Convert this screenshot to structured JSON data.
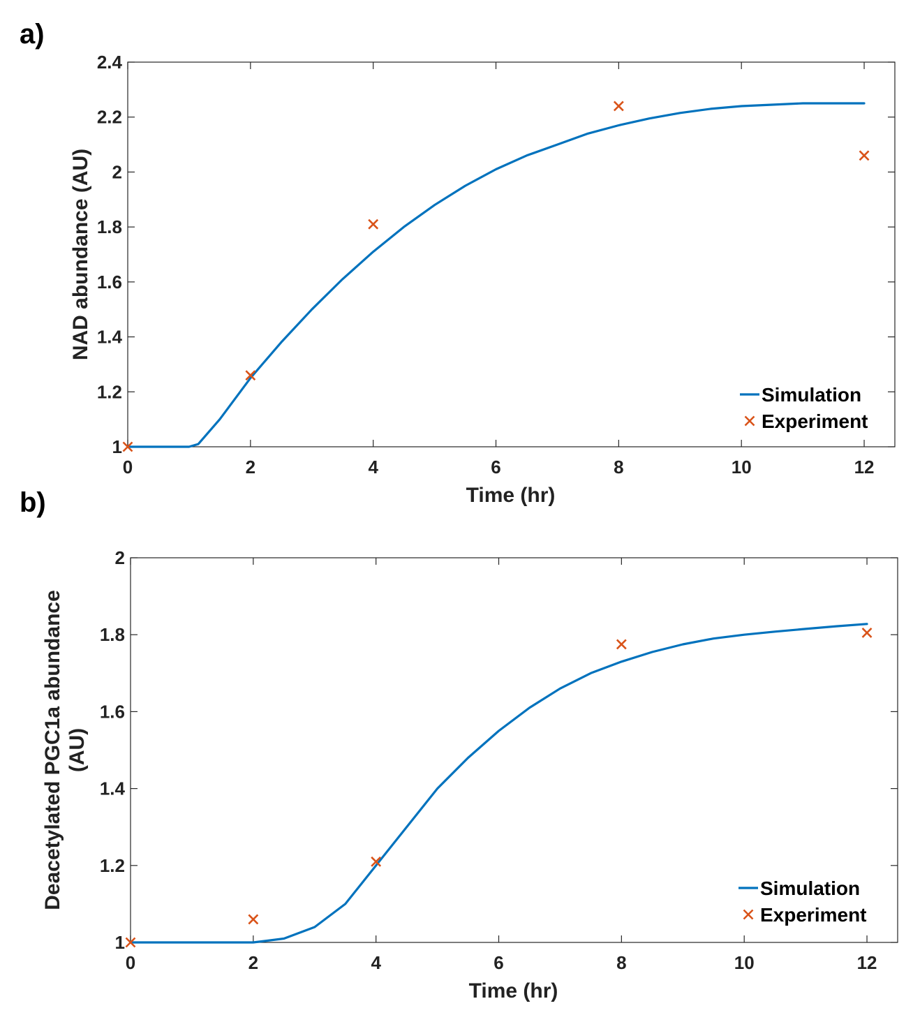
{
  "chart_data": [
    {
      "panel_label": "a)",
      "type": "line",
      "xlabel": "Time (hr)",
      "ylabel": [
        "NAD abundance (AU)"
      ],
      "xlim": [
        0,
        12.5
      ],
      "ylim": [
        1,
        2.4
      ],
      "xticks": [
        0,
        2,
        4,
        6,
        8,
        10,
        12
      ],
      "yticks": [
        1,
        1.2,
        1.4,
        1.6,
        1.8,
        2,
        2.2,
        2.4
      ],
      "xtick_labels": [
        "0",
        "2",
        "4",
        "6",
        "8",
        "10",
        "12"
      ],
      "ytick_labels": [
        "1",
        "1.2",
        "1.4",
        "1.6",
        "1.8",
        "2",
        "2.2",
        "2.4"
      ],
      "grid": false,
      "legend": "bottom-right",
      "series": [
        {
          "name": "Simulation",
          "kind": "line",
          "color": "#0072BD",
          "x": [
            0,
            0.5,
            1.0,
            1.15,
            1.5,
            2.0,
            2.5,
            3.0,
            3.5,
            4.0,
            4.5,
            5.0,
            5.5,
            6.0,
            6.5,
            7.0,
            7.5,
            8.0,
            8.5,
            9.0,
            9.5,
            10.0,
            10.5,
            11.0,
            11.5,
            12.0
          ],
          "y": [
            1.0,
            1.0,
            1.0,
            1.01,
            1.1,
            1.25,
            1.38,
            1.5,
            1.61,
            1.71,
            1.8,
            1.88,
            1.95,
            2.01,
            2.06,
            2.1,
            2.14,
            2.17,
            2.195,
            2.215,
            2.23,
            2.24,
            2.245,
            2.25,
            2.25,
            2.25
          ]
        },
        {
          "name": "Experiment",
          "kind": "scatter",
          "marker": "x",
          "color": "#D95319",
          "x": [
            0,
            2,
            4,
            8,
            12
          ],
          "y": [
            1.0,
            1.26,
            1.81,
            2.24,
            2.06
          ]
        }
      ]
    },
    {
      "panel_label": "b)",
      "type": "line",
      "xlabel": "Time (hr)",
      "ylabel": [
        "Deacetylated PGC1a abundance",
        "(AU)"
      ],
      "xlim": [
        0,
        12.5
      ],
      "ylim": [
        1,
        2
      ],
      "xticks": [
        0,
        2,
        4,
        6,
        8,
        10,
        12
      ],
      "yticks": [
        1,
        1.2,
        1.4,
        1.6,
        1.8,
        2
      ],
      "xtick_labels": [
        "0",
        "2",
        "4",
        "6",
        "8",
        "10",
        "12"
      ],
      "ytick_labels": [
        "1",
        "1.2",
        "1.4",
        "1.6",
        "1.8",
        "2"
      ],
      "grid": false,
      "legend": "bottom-right",
      "series": [
        {
          "name": "Simulation",
          "kind": "line",
          "color": "#0072BD",
          "x": [
            0,
            1.0,
            2.0,
            2.5,
            3.0,
            3.5,
            4.0,
            4.5,
            5.0,
            5.5,
            6.0,
            6.5,
            7.0,
            7.5,
            8.0,
            8.5,
            9.0,
            9.5,
            10.0,
            10.5,
            11.0,
            11.5,
            12.0
          ],
          "y": [
            1.0,
            1.0,
            1.0,
            1.01,
            1.04,
            1.1,
            1.2,
            1.3,
            1.4,
            1.48,
            1.55,
            1.61,
            1.66,
            1.7,
            1.73,
            1.755,
            1.775,
            1.79,
            1.8,
            1.808,
            1.815,
            1.822,
            1.828
          ]
        },
        {
          "name": "Experiment",
          "kind": "scatter",
          "marker": "x",
          "color": "#D95319",
          "x": [
            0,
            2,
            4,
            8,
            12
          ],
          "y": [
            1.0,
            1.06,
            1.21,
            1.775,
            1.805
          ]
        }
      ]
    }
  ]
}
